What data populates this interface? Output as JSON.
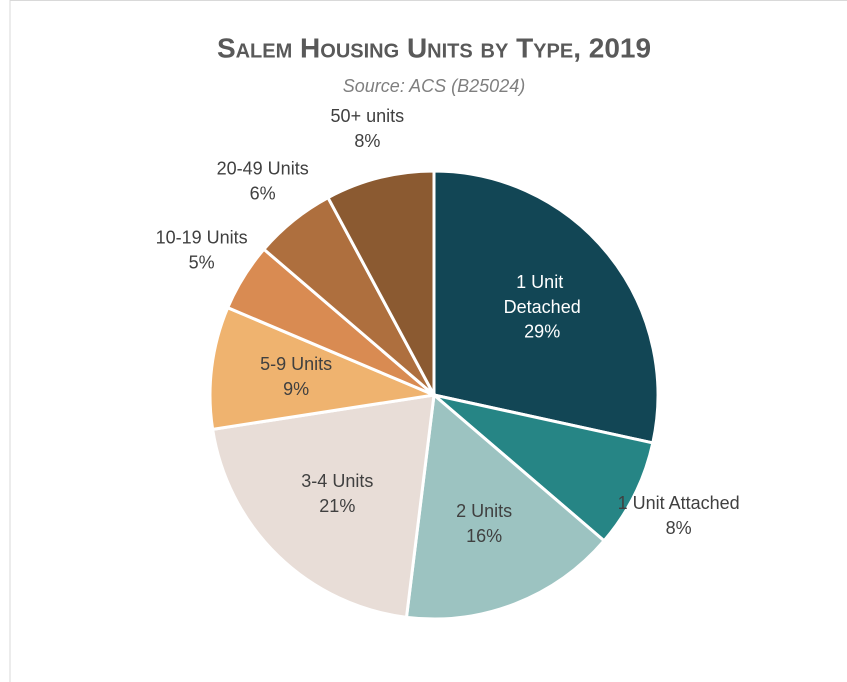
{
  "chart_data": {
    "type": "pie",
    "title": "Salem Housing Units by Type, 2019",
    "subtitle": "Source: ACS (B25024)",
    "categories": [
      "1 Unit Detached",
      "1 Unit Attached",
      "2 Units",
      "3-4 Units",
      "5-9 Units",
      "10-19 Units",
      "20-49 Units",
      "50+ units"
    ],
    "values": [
      29,
      8,
      16,
      21,
      9,
      5,
      6,
      8
    ],
    "value_labels": [
      "29%",
      "8%",
      "16%",
      "21%",
      "9%",
      "5%",
      "6%",
      "8%"
    ],
    "colors": [
      "#124655",
      "#268585",
      "#9cc3c1",
      "#e8ddd7",
      "#efb36f",
      "#d98b52",
      "#ae6f3e",
      "#8b5a31"
    ]
  }
}
